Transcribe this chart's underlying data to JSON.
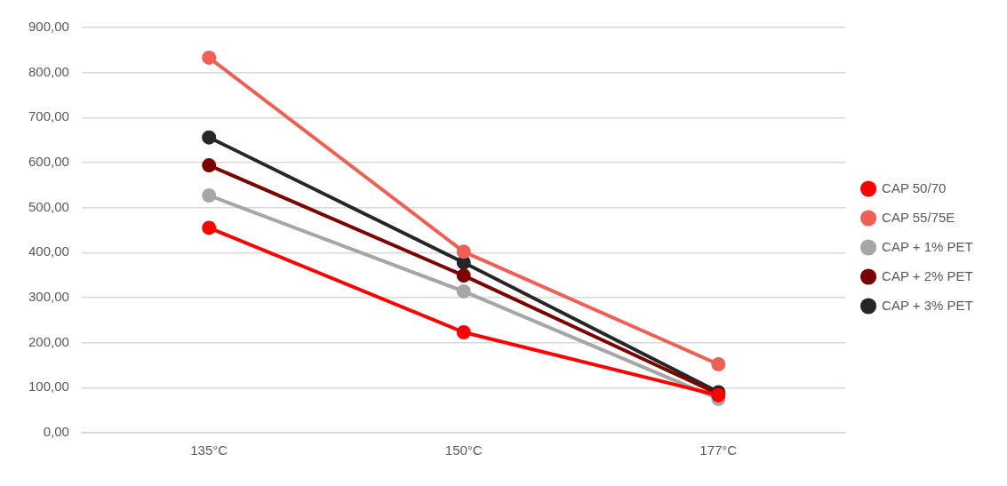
{
  "chart_data": {
    "type": "line",
    "categories": [
      "135°C",
      "150°C",
      "177°C"
    ],
    "series": [
      {
        "name": "CAP 50/70",
        "color": "#ff0000",
        "values": [
          455,
          223,
          83
        ]
      },
      {
        "name": "CAP 55/75E",
        "color": "#ee6055",
        "values": [
          833,
          402,
          152
        ]
      },
      {
        "name": "CAP + 1% PET",
        "color": "#a6a6a6",
        "values": [
          527,
          314,
          75
        ]
      },
      {
        "name": "CAP + 2% PET",
        "color": "#7b0000",
        "values": [
          594,
          349,
          86
        ]
      },
      {
        "name": "CAP + 3% PET",
        "color": "#262626",
        "values": [
          656,
          378,
          90
        ]
      }
    ],
    "ylim": [
      0,
      900
    ],
    "yticks": [
      {
        "value": 0,
        "label": "0,00"
      },
      {
        "value": 100,
        "label": "100,00"
      },
      {
        "value": 200,
        "label": "200,00"
      },
      {
        "value": 300,
        "label": "300,00"
      },
      {
        "value": 400,
        "label": "400,00"
      },
      {
        "value": 500,
        "label": "500,00"
      },
      {
        "value": 600,
        "label": "600,00"
      },
      {
        "value": 700,
        "label": "700,00"
      },
      {
        "value": 800,
        "label": "800,00"
      },
      {
        "value": 900,
        "label": "900,00"
      }
    ],
    "grid": "y",
    "legend": "right",
    "marker": "circle",
    "line_style": "solid"
  }
}
